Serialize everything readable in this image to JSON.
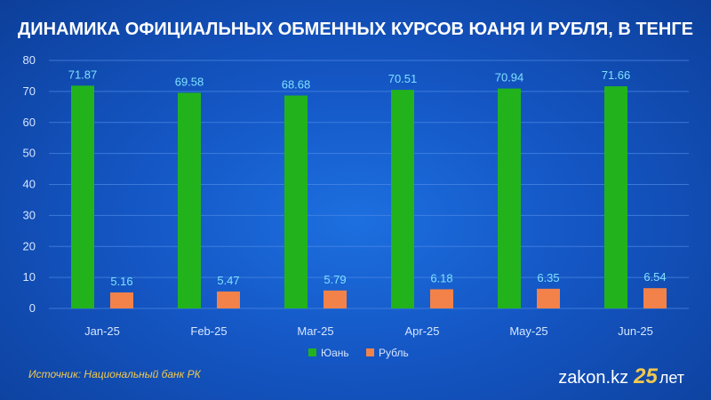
{
  "title": "ДИНАМИКА ОФИЦИАЛЬНЫХ ОБМЕННЫХ КУРСОВ ЮАНЯ И РУБЛЯ, В ТЕНГЕ",
  "source": "Источник: Национальный банк РК",
  "brand": {
    "name": "zakon.kz",
    "number": "25",
    "suffix": "лет"
  },
  "colors": {
    "yuan": "#22b31c",
    "ruble": "#f2824a",
    "label": "#7fe0ff",
    "tick": "#d6e6ff",
    "grid": "#4e8ae6"
  },
  "chart_data": {
    "type": "bar",
    "title": "ДИНАМИКА ОФИЦИАЛЬНЫХ ОБМЕННЫХ КУРСОВ ЮАНЯ И РУБЛЯ, В ТЕНГЕ",
    "categories": [
      "Jan-25",
      "Feb-25",
      "Mar-25",
      "Apr-25",
      "May-25",
      "Jun-25"
    ],
    "series": [
      {
        "name": "Юань",
        "values": [
          71.87,
          69.58,
          68.68,
          70.51,
          70.94,
          71.66
        ]
      },
      {
        "name": "Рубль",
        "values": [
          5.16,
          5.47,
          5.79,
          6.18,
          6.35,
          6.54
        ]
      }
    ],
    "xlabel": "",
    "ylabel": "",
    "ylim": [
      0,
      80
    ],
    "yticks": [
      0,
      10,
      20,
      30,
      40,
      50,
      60,
      70,
      80
    ],
    "grid": true,
    "legend": "bottom"
  }
}
